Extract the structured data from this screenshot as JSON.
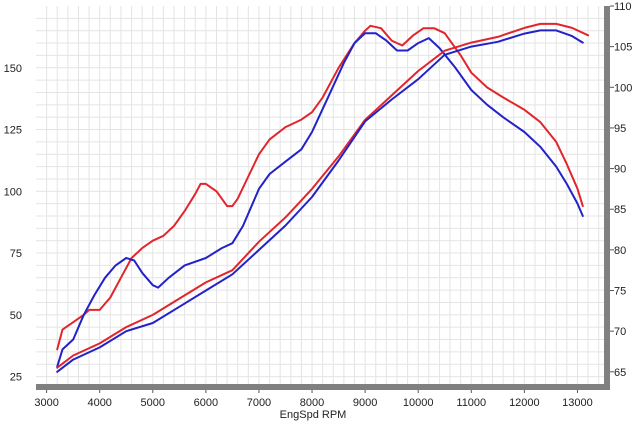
{
  "chart_data": {
    "type": "line",
    "xlabel": "EngSpd  RPM",
    "x_ticks": [
      "3000",
      "4000",
      "5000",
      "6000",
      "7000",
      "8000",
      "9000",
      "10000",
      "11000",
      "12000",
      "13000"
    ],
    "xlim": [
      2800,
      13500
    ],
    "y_left": {
      "ylim": [
        22,
        175
      ],
      "ticks": [
        "25",
        "50",
        "75",
        "100",
        "125",
        "150"
      ]
    },
    "y_right": {
      "ylim": [
        63.5,
        110
      ],
      "ticks": [
        "65",
        "70",
        "75",
        "80",
        "85",
        "90",
        "95",
        "100",
        "105",
        "110"
      ]
    },
    "grid": true,
    "colors": {
      "red": "#e0262c",
      "blue": "#2222c8",
      "frame": "#808080",
      "grid": "#e4e4e4"
    },
    "series": [
      {
        "color": "#e0262c",
        "axis": "left",
        "points": [
          [
            3200,
            36
          ],
          [
            3300,
            44
          ],
          [
            3500,
            47
          ],
          [
            3700,
            50
          ],
          [
            3800,
            52
          ],
          [
            4000,
            52
          ],
          [
            4200,
            57
          ],
          [
            4400,
            65
          ],
          [
            4600,
            73
          ],
          [
            4800,
            77
          ],
          [
            5000,
            80
          ],
          [
            5200,
            82
          ],
          [
            5400,
            86
          ],
          [
            5600,
            92
          ],
          [
            5800,
            99
          ],
          [
            5900,
            103
          ],
          [
            6000,
            103
          ],
          [
            6200,
            100
          ],
          [
            6400,
            94
          ],
          [
            6500,
            94
          ],
          [
            6600,
            97
          ],
          [
            6800,
            106
          ],
          [
            7000,
            115
          ],
          [
            7200,
            121
          ],
          [
            7500,
            126
          ],
          [
            7800,
            129
          ],
          [
            8000,
            132
          ],
          [
            8200,
            138
          ],
          [
            8500,
            150
          ],
          [
            8800,
            160
          ],
          [
            9000,
            165
          ],
          [
            9100,
            167
          ],
          [
            9300,
            166
          ],
          [
            9500,
            161
          ],
          [
            9700,
            159
          ],
          [
            9900,
            163
          ],
          [
            10100,
            166
          ],
          [
            10300,
            166
          ],
          [
            10500,
            164
          ],
          [
            10800,
            155
          ],
          [
            11000,
            148
          ],
          [
            11300,
            142
          ],
          [
            11600,
            138
          ],
          [
            12000,
            133
          ],
          [
            12300,
            128
          ],
          [
            12600,
            120
          ],
          [
            12800,
            111
          ],
          [
            13000,
            101
          ],
          [
            13100,
            94
          ]
        ]
      },
      {
        "color": "#2222c8",
        "axis": "left",
        "points": [
          [
            3200,
            29
          ],
          [
            3300,
            36
          ],
          [
            3500,
            40
          ],
          [
            3700,
            50
          ],
          [
            3900,
            58
          ],
          [
            4100,
            65
          ],
          [
            4300,
            70
          ],
          [
            4500,
            73
          ],
          [
            4650,
            72
          ],
          [
            4800,
            67
          ],
          [
            5000,
            62
          ],
          [
            5100,
            61
          ],
          [
            5300,
            65
          ],
          [
            5600,
            70
          ],
          [
            6000,
            73
          ],
          [
            6300,
            77
          ],
          [
            6500,
            79
          ],
          [
            6700,
            86
          ],
          [
            7000,
            101
          ],
          [
            7200,
            107
          ],
          [
            7500,
            112
          ],
          [
            7800,
            117
          ],
          [
            8000,
            124
          ],
          [
            8300,
            138
          ],
          [
            8600,
            152
          ],
          [
            8800,
            160
          ],
          [
            9000,
            164
          ],
          [
            9200,
            164
          ],
          [
            9400,
            161
          ],
          [
            9600,
            157
          ],
          [
            9800,
            157
          ],
          [
            10000,
            160
          ],
          [
            10200,
            162
          ],
          [
            10400,
            158
          ],
          [
            10700,
            150
          ],
          [
            11000,
            141
          ],
          [
            11300,
            135
          ],
          [
            11600,
            130
          ],
          [
            12000,
            124
          ],
          [
            12300,
            118
          ],
          [
            12600,
            110
          ],
          [
            12800,
            103
          ],
          [
            13000,
            95
          ],
          [
            13100,
            90
          ]
        ]
      },
      {
        "color": "#e0262c",
        "axis": "right",
        "points": [
          [
            3200,
            65.5
          ],
          [
            3500,
            67
          ],
          [
            4000,
            68.5
          ],
          [
            4500,
            70.5
          ],
          [
            5000,
            72
          ],
          [
            5500,
            74
          ],
          [
            6000,
            76
          ],
          [
            6500,
            77.5
          ],
          [
            7000,
            81
          ],
          [
            7500,
            84
          ],
          [
            8000,
            87.5
          ],
          [
            8500,
            91.5
          ],
          [
            9000,
            96
          ],
          [
            9500,
            99
          ],
          [
            10000,
            102
          ],
          [
            10500,
            104.5
          ],
          [
            11000,
            105.5
          ],
          [
            11500,
            106.2
          ],
          [
            12000,
            107.3
          ],
          [
            12300,
            107.8
          ],
          [
            12600,
            107.8
          ],
          [
            12900,
            107.3
          ],
          [
            13200,
            106.4
          ]
        ]
      },
      {
        "color": "#2222c8",
        "axis": "right",
        "points": [
          [
            3200,
            65
          ],
          [
            3500,
            66.5
          ],
          [
            4000,
            68
          ],
          [
            4500,
            70
          ],
          [
            5000,
            71
          ],
          [
            5500,
            73
          ],
          [
            6000,
            75
          ],
          [
            6500,
            77
          ],
          [
            7000,
            80
          ],
          [
            7500,
            83
          ],
          [
            8000,
            86.5
          ],
          [
            8500,
            91
          ],
          [
            9000,
            95.8
          ],
          [
            9500,
            98.5
          ],
          [
            10000,
            101
          ],
          [
            10500,
            104
          ],
          [
            11000,
            105
          ],
          [
            11500,
            105.6
          ],
          [
            12000,
            106.6
          ],
          [
            12300,
            107
          ],
          [
            12600,
            107
          ],
          [
            12900,
            106.3
          ],
          [
            13100,
            105.5
          ]
        ]
      }
    ]
  }
}
